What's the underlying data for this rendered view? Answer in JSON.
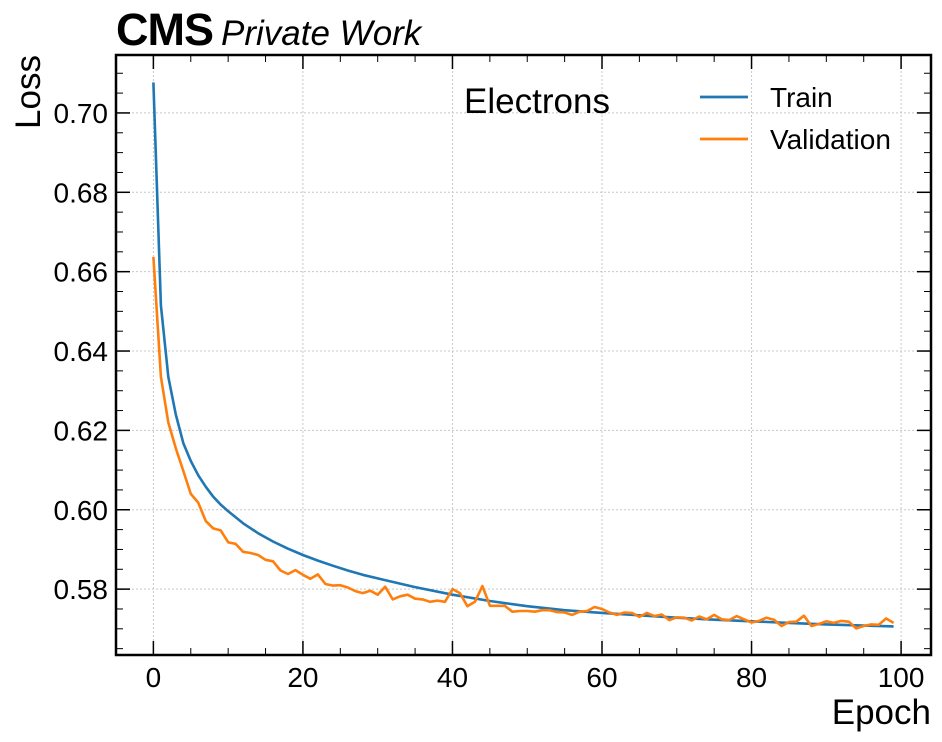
{
  "header": {
    "experiment": "CMS",
    "status": "Private Work"
  },
  "chart_data": {
    "type": "line",
    "xlabel": "Epoch",
    "ylabel": "Loss",
    "annotation": "Electrons",
    "xlim": [
      -5,
      104
    ],
    "ylim": [
      0.5634,
      0.7146
    ],
    "xticks": [
      0,
      20,
      40,
      60,
      80,
      100
    ],
    "yticks": [
      0.58,
      0.6,
      0.62,
      0.64,
      0.66,
      0.68,
      0.7
    ],
    "ytick_labels": [
      "0.58",
      "0.60",
      "0.62",
      "0.64",
      "0.66",
      "0.68",
      "0.70"
    ],
    "grid": true,
    "legend_position": "top-right",
    "colors": {
      "Train": "#1f77b4",
      "Validation": "#ff7f0e"
    },
    "series": [
      {
        "name": "Train",
        "x": [
          0,
          1,
          2,
          3,
          4,
          5,
          6,
          7,
          8,
          9,
          10,
          12,
          14,
          16,
          18,
          20,
          22,
          24,
          26,
          28,
          30,
          35,
          40,
          45,
          50,
          55,
          60,
          65,
          70,
          75,
          80,
          85,
          90,
          95,
          99
        ],
        "values": [
          0.7077,
          0.6515,
          0.6335,
          0.624,
          0.6168,
          0.6123,
          0.6087,
          0.6058,
          0.6033,
          0.6013,
          0.5996,
          0.5966,
          0.5941,
          0.592,
          0.5902,
          0.5886,
          0.5872,
          0.5859,
          0.5847,
          0.5836,
          0.5827,
          0.5805,
          0.5786,
          0.577,
          0.5757,
          0.5747,
          0.574,
          0.5734,
          0.5728,
          0.5723,
          0.5719,
          0.5715,
          0.5711,
          0.5708,
          0.5706
        ]
      },
      {
        "name": "Validation",
        "x": [
          0,
          1,
          2,
          3,
          4,
          5,
          6,
          7,
          8,
          9,
          10,
          11,
          12,
          13,
          14,
          15,
          16,
          17,
          18,
          19,
          20,
          21,
          22,
          23,
          24,
          25,
          26,
          27,
          28,
          29,
          30,
          31,
          32,
          33,
          34,
          35,
          36,
          37,
          38,
          39,
          40,
          41,
          42,
          43,
          44,
          45,
          46,
          47,
          48,
          49,
          50,
          51,
          52,
          53,
          54,
          55,
          56,
          57,
          58,
          59,
          60,
          61,
          62,
          63,
          64,
          65,
          66,
          67,
          68,
          69,
          70,
          71,
          72,
          73,
          74,
          75,
          76,
          77,
          78,
          79,
          80,
          81,
          82,
          83,
          84,
          85,
          86,
          87,
          88,
          89,
          90,
          91,
          92,
          93,
          94,
          95,
          96,
          97,
          98,
          99
        ],
        "values": [
          0.6637,
          0.6335,
          0.622,
          0.6155,
          0.6098,
          0.604,
          0.6018,
          0.5972,
          0.5953,
          0.5948,
          0.5918,
          0.5914,
          0.5894,
          0.5891,
          0.5886,
          0.5874,
          0.587,
          0.5847,
          0.5838,
          0.5848,
          0.5836,
          0.5826,
          0.5837,
          0.5813,
          0.5809,
          0.581,
          0.5804,
          0.5795,
          0.579,
          0.5796,
          0.5786,
          0.5806,
          0.5774,
          0.5782,
          0.5786,
          0.5776,
          0.5774,
          0.5768,
          0.5771,
          0.5768,
          0.58,
          0.579,
          0.5757,
          0.5768,
          0.5808,
          0.5758,
          0.5758,
          0.5758,
          0.5743,
          0.5745,
          0.5745,
          0.5743,
          0.5747,
          0.5747,
          0.5742,
          0.5741,
          0.5735,
          0.5743,
          0.5745,
          0.5755,
          0.575,
          0.5741,
          0.5735,
          0.5741,
          0.574,
          0.573,
          0.574,
          0.5732,
          0.5736,
          0.5722,
          0.5729,
          0.5728,
          0.5721,
          0.5731,
          0.5724,
          0.5735,
          0.5724,
          0.5722,
          0.5732,
          0.5724,
          0.5716,
          0.572,
          0.5728,
          0.5723,
          0.5707,
          0.5717,
          0.5718,
          0.5733,
          0.5707,
          0.5712,
          0.5719,
          0.5715,
          0.572,
          0.5718,
          0.5701,
          0.5707,
          0.5711,
          0.571,
          0.5726,
          0.5715
        ]
      }
    ]
  }
}
